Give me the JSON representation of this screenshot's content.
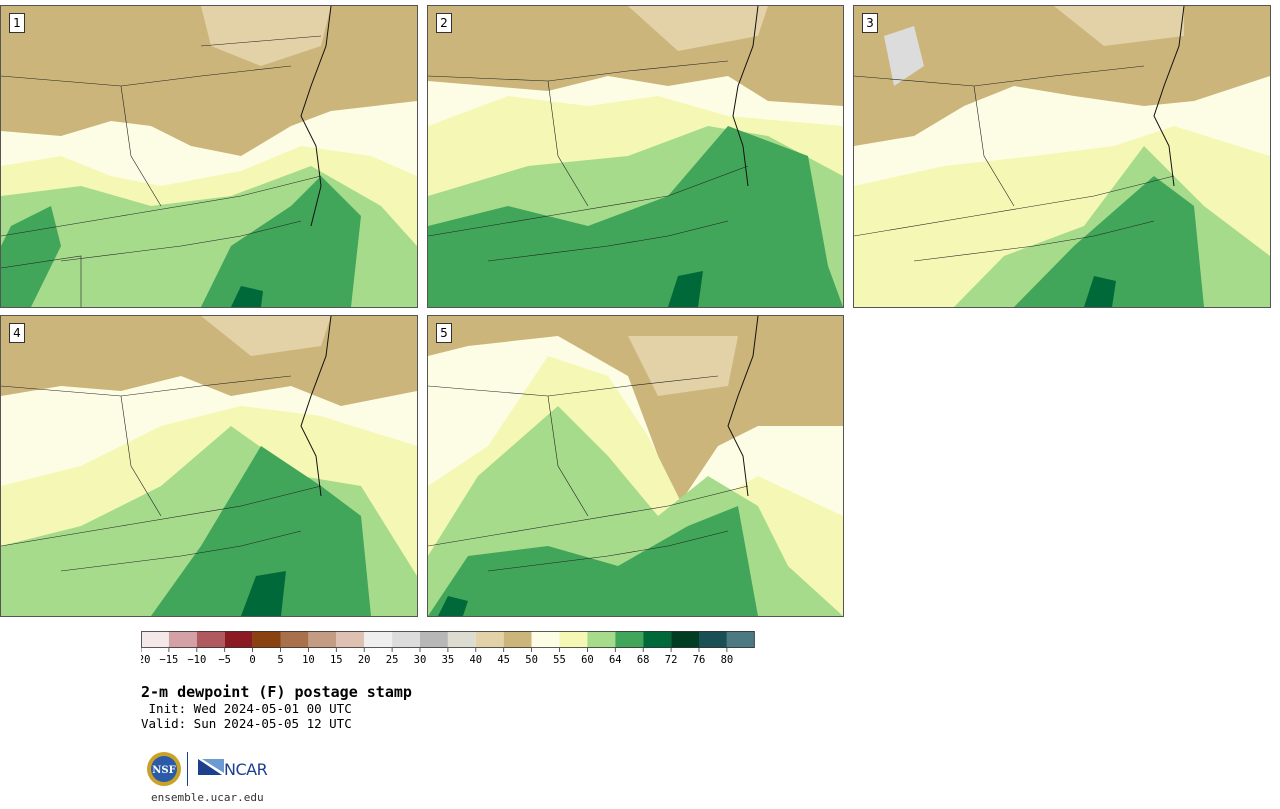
{
  "panels": [
    {
      "label": "1"
    },
    {
      "label": "2"
    },
    {
      "label": "3"
    },
    {
      "label": "4"
    },
    {
      "label": "5"
    }
  ],
  "colorbar": {
    "colors": [
      "#f5e8e8",
      "#d4a2a6",
      "#b05a5f",
      "#8b1a22",
      "#8a4310",
      "#a8714c",
      "#c49c83",
      "#dfc1b3",
      "#efefef",
      "#dcdcdc",
      "#b7b7b7",
      "#dcdcd0",
      "#e3d1a8",
      "#cbb57a",
      "#fdfde6",
      "#f5f8b5",
      "#a6db8c",
      "#41a55a",
      "#00693a",
      "#003d23",
      "#1a4f55",
      "#4d7a80"
    ],
    "ticks": [
      "−20",
      "−15",
      "−10",
      "−5",
      "0",
      "5",
      "10",
      "15",
      "20",
      "25",
      "30",
      "35",
      "40",
      "45",
      "50",
      "55",
      "60",
      "64",
      "68",
      "72",
      "76",
      "80"
    ]
  },
  "title": "2-m dewpoint (F) postage stamp",
  "init_line": " Init: Wed 2024-05-01 00 UTC",
  "valid_line": "Valid: Sun 2024-05-05 12 UTC",
  "logos": {
    "nsf": "NSF",
    "ncar": "NCAR"
  },
  "url": "ensemble.ucar.edu"
}
